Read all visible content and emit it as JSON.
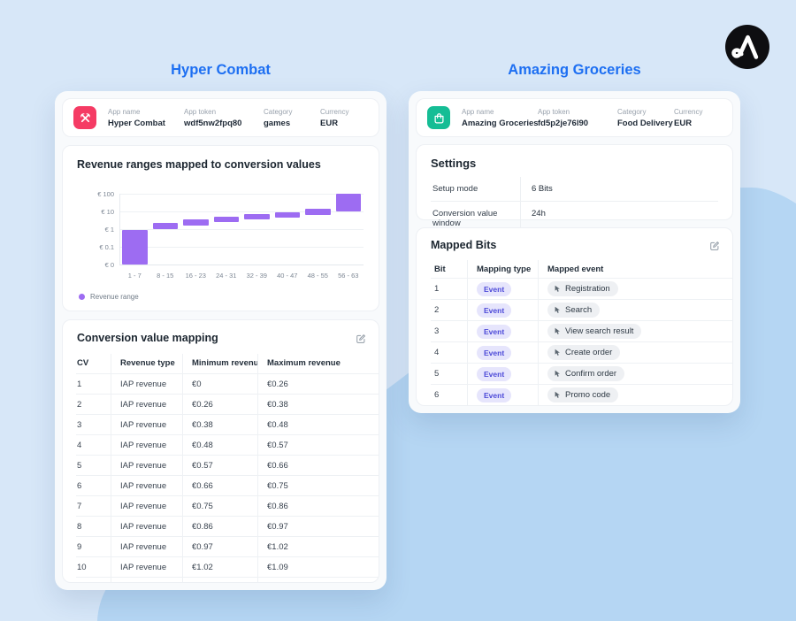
{
  "logo": {
    "name": "adjust-logo"
  },
  "columns": {
    "left": {
      "title": "Hyper Combat",
      "app": {
        "icon": "crossed-axes-icon",
        "icon_color": "#f53b64",
        "fields": [
          {
            "label": "App name",
            "value": "Hyper Combat"
          },
          {
            "label": "App token",
            "value": "wdf5nw2fpq80"
          },
          {
            "label": "Category",
            "value": "games"
          },
          {
            "label": "Currency",
            "value": "EUR"
          }
        ]
      },
      "chart_card": {
        "title": "Revenue ranges mapped to conversion values",
        "legend": "Revenue range"
      },
      "mapping_card": {
        "title": "Conversion value mapping",
        "headers": [
          "CV",
          "Revenue type",
          "Minimum revenue",
          "Maximum revenue"
        ],
        "rows": [
          [
            "1",
            "IAP revenue",
            "€0",
            "€0.26"
          ],
          [
            "2",
            "IAP revenue",
            "€0.26",
            "€0.38"
          ],
          [
            "3",
            "IAP revenue",
            "€0.38",
            "€0.48"
          ],
          [
            "4",
            "IAP revenue",
            "€0.48",
            "€0.57"
          ],
          [
            "5",
            "IAP revenue",
            "€0.57",
            "€0.66"
          ],
          [
            "6",
            "IAP revenue",
            "€0.66",
            "€0.75"
          ],
          [
            "7",
            "IAP revenue",
            "€0.75",
            "€0.86"
          ],
          [
            "8",
            "IAP revenue",
            "€0.86",
            "€0.97"
          ],
          [
            "9",
            "IAP revenue",
            "€0.97",
            "€1.02"
          ],
          [
            "10",
            "IAP revenue",
            "€1.02",
            "€1.09"
          ]
        ]
      }
    },
    "right": {
      "title": "Amazing Groceries",
      "app": {
        "icon": "shopping-bag-icon",
        "icon_color": "#15bd95",
        "fields": [
          {
            "label": "App name",
            "value": "Amazing Groceries"
          },
          {
            "label": "App token",
            "value": "fd5p2je76l90"
          },
          {
            "label": "Category",
            "value": "Food Delivery"
          },
          {
            "label": "Currency",
            "value": "EUR"
          }
        ]
      },
      "settings_card": {
        "title": "Settings",
        "rows": [
          {
            "label": "Setup mode",
            "value": "6 Bits"
          },
          {
            "label": "Conversion value window",
            "value": "24h"
          }
        ]
      },
      "mapped_bits_card": {
        "title": "Mapped Bits",
        "headers": [
          "Bit",
          "Mapping type",
          "Mapped event"
        ],
        "rows": [
          {
            "bit": "1",
            "type": "Event",
            "event": "Registration"
          },
          {
            "bit": "2",
            "type": "Event",
            "event": "Search"
          },
          {
            "bit": "3",
            "type": "Event",
            "event": "View search result"
          },
          {
            "bit": "4",
            "type": "Event",
            "event": "Create order"
          },
          {
            "bit": "5",
            "type": "Event",
            "event": "Confirm order"
          },
          {
            "bit": "6",
            "type": "Event",
            "event": "Promo code"
          }
        ]
      }
    }
  },
  "chart_data": {
    "type": "bar",
    "subtype": "floating-range-bars",
    "title": "Revenue ranges mapped to conversion values",
    "categories": [
      "1 - 7",
      "8 - 15",
      "16 - 23",
      "24 - 31",
      "32 - 39",
      "40 - 47",
      "48 - 55",
      "56 - 63"
    ],
    "series": [
      {
        "name": "Revenue range",
        "low": [
          0,
          1.0,
          1.5,
          2.6,
          3.5,
          4.5,
          6.6,
          10.5
        ],
        "high": [
          0.9,
          2.3,
          3.6,
          5.2,
          6.9,
          8.9,
          13.5,
          95
        ]
      }
    ],
    "y_ticks": [
      "€ 100",
      "€ 10",
      "€ 1",
      "€ 0.1",
      "€ 0"
    ],
    "y_scale": "log (decade gridlines, zero baseline)",
    "ylim": [
      0,
      100
    ],
    "grid": true,
    "legend": [
      "Revenue range"
    ],
    "legend_position": "bottom-left",
    "bar_color": "#9d6cf2"
  },
  "colors": {
    "accent_blue": "#1d6ff2",
    "bar_purple": "#9d6cf2",
    "event_badge_bg": "#e6e5fc",
    "event_badge_text": "#4c49d8",
    "app_icon_left": "#f53b64",
    "app_icon_right": "#15bd95",
    "background_light": "#d7e7f8",
    "background_blob": "#b5d6f3"
  }
}
